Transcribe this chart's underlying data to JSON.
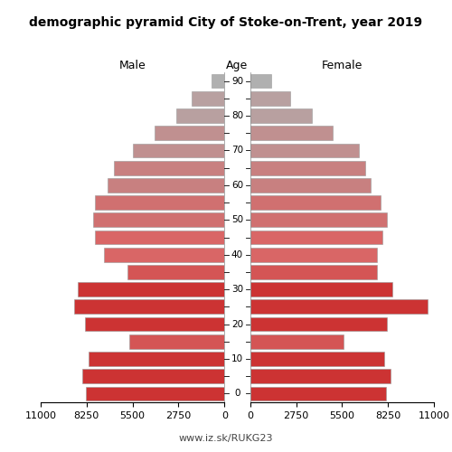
{
  "title": "demographic pyramid City of Stoke-on-Trent, year 2019",
  "xlabel_left": "Male",
  "xlabel_right": "Female",
  "xlabel_center": "Age",
  "age_groups": [
    0,
    5,
    10,
    15,
    20,
    25,
    30,
    35,
    40,
    45,
    50,
    55,
    60,
    65,
    70,
    75,
    80,
    85,
    90
  ],
  "age_tick_labels": [
    "0",
    "",
    "10",
    "",
    "20",
    "",
    "30",
    "",
    "40",
    "",
    "50",
    "",
    "60",
    "",
    "70",
    "",
    "80",
    "",
    "90"
  ],
  "male_values": [
    8300,
    8500,
    8150,
    5700,
    8350,
    9000,
    8800,
    5800,
    7200,
    7750,
    7850,
    7750,
    7000,
    6600,
    5500,
    4200,
    2900,
    1950,
    750
  ],
  "female_values": [
    8150,
    8400,
    8000,
    5600,
    8200,
    10600,
    8500,
    7600,
    7600,
    7900,
    8200,
    7800,
    7200,
    6900,
    6500,
    4950,
    3700,
    2400,
    1250
  ],
  "colors": {
    "0": "#cc3333",
    "5": "#cc3333",
    "10": "#cc3333",
    "15": "#d45555",
    "20": "#cc3333",
    "25": "#cc3333",
    "30": "#cc3333",
    "35": "#d45555",
    "40": "#d96666",
    "45": "#d96666",
    "50": "#d07070",
    "55": "#d07070",
    "60": "#c88080",
    "65": "#c88080",
    "70": "#c09090",
    "75": "#c09090",
    "80": "#b8a0a0",
    "85": "#b8a0a0",
    "90": "#b0b0b0"
  },
  "xlim": 11000,
  "xticks": [
    0,
    2750,
    5500,
    8250,
    11000
  ],
  "xtick_labels": [
    "0",
    "2750",
    "5500",
    "8250",
    "11000"
  ],
  "url": "www.iz.sk/RUKG23",
  "bar_height": 0.82,
  "bar_edge_color": "#999999",
  "bar_edge_width": 0.4
}
